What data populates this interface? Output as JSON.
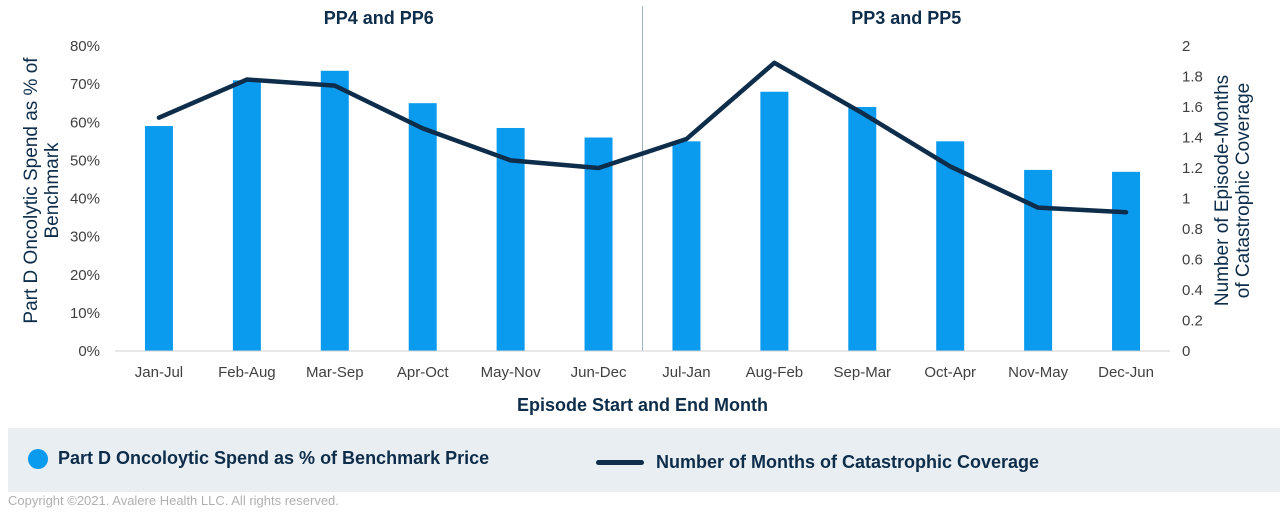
{
  "chart_data": {
    "type": "bar",
    "categories": [
      "Jan-Jul",
      "Feb-Aug",
      "Mar-Sep",
      "Apr-Oct",
      "May-Nov",
      "Jun-Dec",
      "Jul-Jan",
      "Aug-Feb",
      "Sep-Mar",
      "Oct-Apr",
      "Nov-May",
      "Dec-Jun"
    ],
    "groups": [
      {
        "title": "PP4 and PP6",
        "categories": [
          "Jan-Jul",
          "Feb-Aug",
          "Mar-Sep",
          "Apr-Oct",
          "May-Nov",
          "Jun-Dec"
        ]
      },
      {
        "title": "PP3 and PP5",
        "categories": [
          "Jul-Jan",
          "Aug-Feb",
          "Sep-Mar",
          "Oct-Apr",
          "Nov-May",
          "Dec-Jun"
        ]
      }
    ],
    "series": [
      {
        "name": "Part D Oncoloytic Spend as % of Benchmark Price",
        "type": "bar",
        "axis": "left",
        "values": [
          59,
          71,
          73.5,
          65,
          58.5,
          56,
          55,
          68,
          64,
          55,
          47.5,
          47
        ],
        "color": "#0a9bef"
      },
      {
        "name": "Number of Months of Catastrophic Coverage",
        "type": "line",
        "axis": "right",
        "values": [
          1.53,
          1.78,
          1.74,
          1.46,
          1.25,
          1.2,
          1.39,
          1.89,
          1.56,
          1.21,
          0.94,
          0.91
        ],
        "color": "#0d2d4a"
      }
    ],
    "xlabel": "Episode Start and End Month",
    "ylabel": "Part D Oncolytic Spend as % of Benchmark",
    "y2label": "Number of Episode-Months of Catastrophic Coverage",
    "ylim": [
      0,
      80
    ],
    "yticks": [
      "0%",
      "10%",
      "20%",
      "30%",
      "40%",
      "50%",
      "60%",
      "70%",
      "80%"
    ],
    "y2lim": [
      0,
      2
    ],
    "y2ticks": [
      "0",
      "0.2",
      "0.4",
      "0.6",
      "0.8",
      "1",
      "1.2",
      "1.4",
      "1.6",
      "1.8",
      "2"
    ]
  },
  "legend": {
    "bar_label": "Part D Oncoloytic Spend as % of Benchmark Price",
    "line_label": "Number of Months of Catastrophic Coverage"
  },
  "copyright": "Copyright ©2021. Avalere Health LLC. All rights reserved."
}
